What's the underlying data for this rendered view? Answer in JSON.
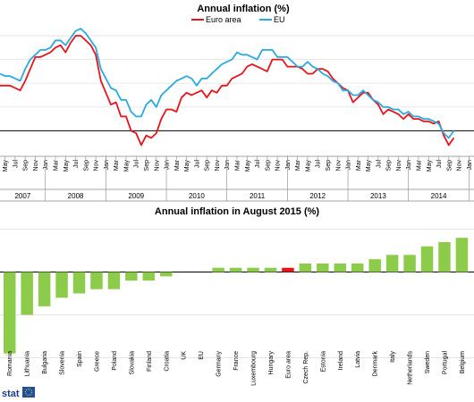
{
  "chart_data": [
    {
      "type": "line",
      "title": "Annual inflation (%)",
      "colors": {
        "Euro area": "#e8131b",
        "EU": "#29aae1"
      },
      "x_start": "2007-04",
      "x_end": "2015-02",
      "month_tick_labels": [
        "Jan",
        "Mar",
        "May",
        "Jul",
        "Sep",
        "Nov"
      ],
      "years": [
        "2007",
        "2008",
        "2009",
        "2010",
        "2011",
        "2012",
        "2013",
        "2014"
      ],
      "ylim": [
        -1,
        4.3
      ],
      "series": [
        {
          "name": "Euro area",
          "values": [
            1.9,
            1.9,
            1.9,
            1.8,
            1.7,
            2.1,
            2.6,
            3.1,
            3.1,
            3.2,
            3.3,
            3.5,
            3.6,
            3.3,
            3.7,
            4.0,
            4.0,
            3.8,
            3.6,
            3.2,
            2.1,
            1.6,
            1.1,
            1.2,
            0.6,
            0.6,
            0.0,
            -0.1,
            -0.6,
            -0.2,
            -0.3,
            -0.1,
            0.5,
            0.9,
            0.9,
            0.8,
            1.4,
            1.6,
            1.5,
            1.6,
            1.7,
            1.4,
            1.7,
            1.6,
            1.9,
            1.9,
            2.2,
            2.3,
            2.4,
            2.7,
            2.8,
            2.7,
            2.6,
            2.5,
            3.0,
            3.0,
            3.0,
            2.7,
            2.7,
            2.7,
            2.6,
            2.4,
            2.4,
            2.6,
            2.6,
            2.5,
            2.2,
            2.0,
            1.8,
            1.7,
            1.2,
            1.4,
            1.6,
            1.6,
            1.3,
            1.1,
            0.7,
            0.9,
            0.8,
            0.7,
            0.5,
            0.7,
            0.5,
            0.5,
            0.4,
            0.4,
            0.3,
            0.4,
            -0.2,
            -0.6,
            -0.3
          ]
        },
        {
          "name": "EU",
          "values": [
            2.4,
            2.3,
            2.3,
            2.2,
            2.1,
            2.6,
            3.0,
            3.2,
            3.4,
            3.4,
            3.5,
            3.8,
            3.8,
            3.6,
            3.9,
            4.2,
            4.3,
            4.1,
            3.8,
            3.5,
            2.6,
            2.2,
            1.8,
            1.7,
            1.3,
            1.3,
            0.8,
            0.6,
            0.6,
            1.1,
            1.3,
            1.0,
            1.5,
            1.7,
            1.9,
            2.1,
            2.2,
            2.3,
            2.2,
            1.9,
            2.2,
            2.2,
            2.4,
            2.6,
            2.8,
            2.9,
            3.0,
            3.3,
            3.2,
            3.2,
            3.1,
            3.0,
            3.4,
            3.4,
            3.4,
            3.1,
            3.1,
            3.1,
            2.9,
            2.7,
            2.7,
            2.9,
            2.7,
            2.6,
            2.4,
            2.3,
            2.1,
            2.0,
            1.7,
            1.7,
            1.5,
            1.5,
            1.7,
            1.5,
            1.3,
            1.2,
            1.0,
            1.0,
            0.9,
            0.9,
            0.7,
            0.8,
            0.6,
            0.6,
            0.5,
            0.5,
            0.4,
            0.3,
            -0.1,
            -0.3,
            0.0
          ]
        }
      ]
    },
    {
      "type": "bar",
      "title": "Annual inflation in August 2015 (%)",
      "highlight_color": "#e8131b",
      "bar_color": "#8dcc4a",
      "ylim": [
        -2.2,
        1.2
      ],
      "categories": [
        "Romania",
        "Lithuania",
        "Bulgaria",
        "Slovenia",
        "Spain",
        "Greece",
        "Poland",
        "Slovakia",
        "Finland",
        "Croatia",
        "UK",
        "EU",
        "Germany",
        "France",
        "Luxembourg",
        "Hungary",
        "Euro area",
        "Czech Rep.",
        "Estonia",
        "Ireland",
        "Latvia",
        "Denmark",
        "Italy",
        "Netherlands",
        "Sweden",
        "Portugal",
        "Belgium"
      ],
      "values": [
        -1.9,
        -1.0,
        -0.8,
        -0.6,
        -0.5,
        -0.4,
        -0.4,
        -0.2,
        -0.2,
        -0.1,
        0.0,
        0.0,
        0.1,
        0.1,
        0.1,
        0.1,
        0.1,
        0.2,
        0.2,
        0.2,
        0.2,
        0.3,
        0.4,
        0.4,
        0.6,
        0.7,
        0.8
      ]
    }
  ],
  "footer": {
    "logo_text": "stat"
  }
}
